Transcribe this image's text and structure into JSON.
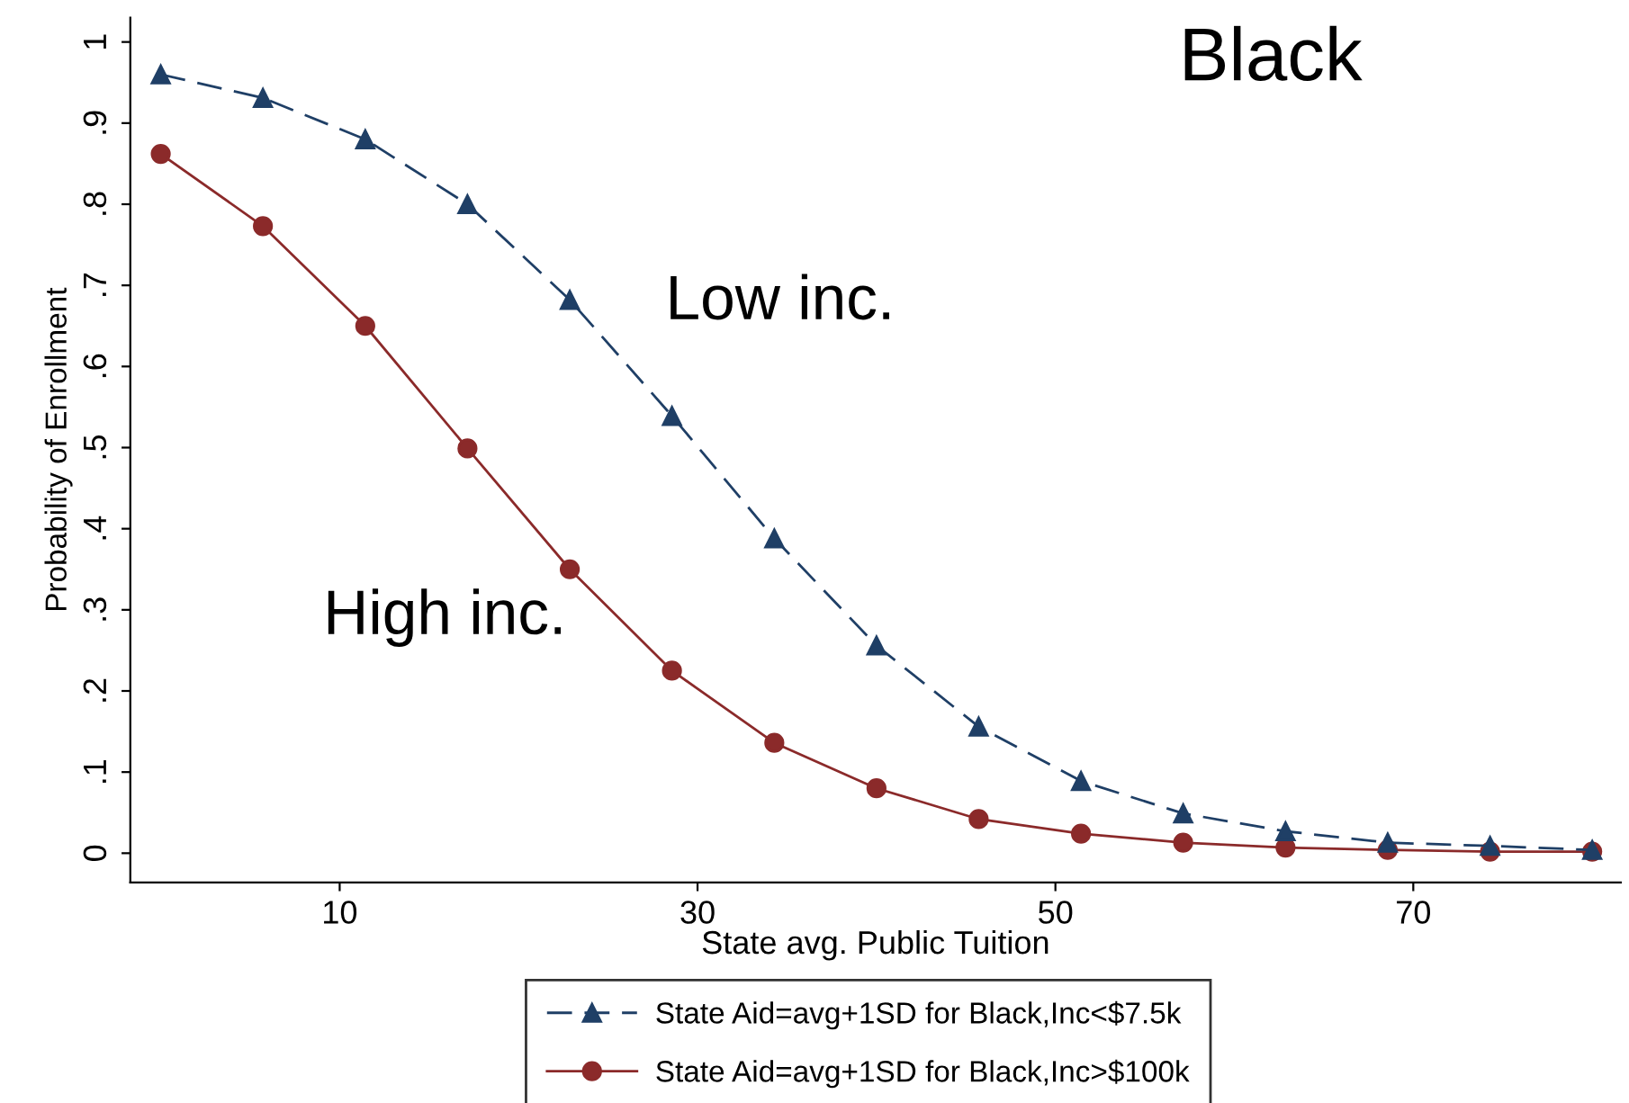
{
  "chart_data": {
    "type": "line",
    "xlabel": "State avg. Public Tuition",
    "ylabel": "Probability of Enrollment",
    "x": [
      0,
      5.71,
      11.43,
      17.14,
      22.86,
      28.57,
      34.29,
      40,
      45.71,
      51.43,
      57.14,
      62.86,
      68.57,
      74.29,
      80
    ],
    "series": [
      {
        "name": "State Aid=avg+1SD for Black,Inc<$7.5k",
        "color": "#1f3f66",
        "marker": "triangle",
        "line_style": "dashed",
        "values": [
          0.96,
          0.931,
          0.88,
          0.8,
          0.682,
          0.539,
          0.388,
          0.256,
          0.156,
          0.089,
          0.049,
          0.027,
          0.013,
          0.009,
          0.004
        ]
      },
      {
        "name": "State Aid=avg+1SD for Black,Inc>$100k",
        "color": "#8b2a2a",
        "marker": "circle",
        "line_style": "solid",
        "values": [
          0.862,
          0.773,
          0.65,
          0.499,
          0.35,
          0.225,
          0.136,
          0.08,
          0.042,
          0.024,
          0.013,
          0.007,
          0.004,
          0.002,
          0.002
        ]
      }
    ],
    "xlim": [
      -1.7,
      81.6
    ],
    "ylim": [
      -0.036,
      1.03
    ],
    "xticks": [
      10,
      30,
      50,
      70
    ],
    "yticks": [
      {
        "value": 0,
        "label": "0"
      },
      {
        "value": 0.1,
        "label": ".1"
      },
      {
        "value": 0.2,
        "label": ".2"
      },
      {
        "value": 0.3,
        "label": ".3"
      },
      {
        "value": 0.4,
        "label": ".4"
      },
      {
        "value": 0.5,
        "label": ".5"
      },
      {
        "value": 0.6,
        "label": ".6"
      },
      {
        "value": 0.7,
        "label": ".7"
      },
      {
        "value": 0.8,
        "label": ".8"
      },
      {
        "value": 0.9,
        "label": ".9"
      },
      {
        "value": 1,
        "label": "1"
      }
    ],
    "annotations": [
      "Black",
      "Low inc.",
      "High inc."
    ],
    "grid": false,
    "legend": "bottom"
  }
}
